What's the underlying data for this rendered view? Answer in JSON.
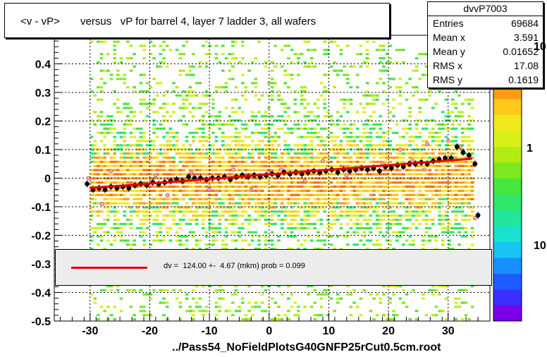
{
  "title": "<v - vP>       versus   vP for barrel 4, layer 7 ladder 3, all wafers",
  "stats": {
    "name": "dvvP7003",
    "rows": [
      {
        "key": "Entries",
        "value": "69684"
      },
      {
        "key": "Mean x",
        "value": "3.591"
      },
      {
        "key": "Mean y",
        "value": "0.01652"
      },
      {
        "key": "RMS x",
        "value": "17.08"
      },
      {
        "key": "RMS y",
        "value": "0.1619"
      }
    ]
  },
  "fit": {
    "text": "dv =  124.00 +-  4.67 (mkm) prob = 0.099",
    "color": "#e00000"
  },
  "footer": "../Pass54_NoFieldPlotsG40GNFP25rCut0.5cm.root",
  "colorbar": {
    "labels": [
      "10",
      "1",
      "10"
    ]
  },
  "chart_data": {
    "type": "scatter",
    "xlim": [
      -36,
      37
    ],
    "ylim": [
      -0.5,
      0.5
    ],
    "x_ticks": [
      -30,
      -20,
      -10,
      0,
      10,
      20,
      30
    ],
    "x_tick_labels": [
      "-30",
      "-20",
      "-10",
      "0",
      "10",
      "20",
      "30"
    ],
    "y_ticks": [
      -0.5,
      -0.4,
      -0.3,
      -0.2,
      -0.1,
      0,
      0.1,
      0.2,
      0.3,
      0.4
    ],
    "y_tick_labels": [
      "-0.5",
      "-0.4",
      "-0.3",
      "-0.2",
      "-0.1",
      "0",
      "0.1",
      "0.2",
      "0.3",
      "0.4"
    ],
    "grid": true,
    "histogram_x_range": [
      -30,
      34
    ],
    "fit_line": {
      "x": [
        -30,
        34
      ],
      "y": [
        -0.035,
        0.068
      ],
      "color": "#e00000"
    },
    "profile_points": [
      [
        -30.5,
        -0.02
      ],
      [
        -29.5,
        -0.04
      ],
      [
        -28.5,
        -0.035
      ],
      [
        -27.5,
        -0.04
      ],
      [
        -26.5,
        -0.03
      ],
      [
        -25.5,
        -0.035
      ],
      [
        -24.5,
        -0.03
      ],
      [
        -23.5,
        -0.035
      ],
      [
        -22.5,
        -0.025
      ],
      [
        -21.5,
        -0.02
      ],
      [
        -20.5,
        -0.025
      ],
      [
        -19.5,
        -0.015
      ],
      [
        -18.5,
        -0.02
      ],
      [
        -17.5,
        -0.015
      ],
      [
        -16.5,
        -0.01
      ],
      [
        -15.5,
        -0.005
      ],
      [
        -14.5,
        -0.01
      ],
      [
        -13.5,
        0.005
      ],
      [
        -12.5,
        0.0
      ],
      [
        -11.5,
        0.0
      ],
      [
        -10.5,
        -0.005
      ],
      [
        -9.5,
        0.0
      ],
      [
        -8.5,
        0.0
      ],
      [
        -7.5,
        0.005
      ],
      [
        -6.5,
        -0.005
      ],
      [
        -5.5,
        0.005
      ],
      [
        -4.5,
        0.01
      ],
      [
        -3.5,
        0.005
      ],
      [
        -2.5,
        0.01
      ],
      [
        -1.5,
        0.005
      ],
      [
        -0.5,
        0.01
      ],
      [
        0.5,
        0.015
      ],
      [
        1.5,
        0.01
      ],
      [
        2.5,
        0.02
      ],
      [
        3.5,
        0.015
      ],
      [
        4.5,
        0.02
      ],
      [
        5.5,
        0.015
      ],
      [
        6.5,
        0.02
      ],
      [
        7.5,
        0.025
      ],
      [
        8.5,
        0.02
      ],
      [
        9.5,
        0.025
      ],
      [
        10.5,
        0.03
      ],
      [
        11.5,
        0.02
      ],
      [
        12.5,
        0.03
      ],
      [
        13.5,
        0.025
      ],
      [
        14.5,
        0.03
      ],
      [
        15.5,
        0.035
      ],
      [
        16.5,
        0.03
      ],
      [
        17.5,
        0.035
      ],
      [
        18.5,
        0.025
      ],
      [
        19.5,
        0.04
      ],
      [
        20.5,
        0.035
      ],
      [
        21.5,
        0.045
      ],
      [
        22.5,
        0.04
      ],
      [
        23.5,
        0.05
      ],
      [
        24.5,
        0.05
      ],
      [
        25.5,
        0.055
      ],
      [
        26.5,
        0.05
      ],
      [
        27.5,
        0.06
      ],
      [
        28.5,
        0.065
      ],
      [
        29.5,
        0.07
      ],
      [
        30.5,
        0.07
      ],
      [
        31.5,
        0.11
      ],
      [
        32.5,
        0.09
      ],
      [
        33.5,
        0.08
      ],
      [
        34.5,
        0.05
      ],
      [
        35.0,
        -0.13
      ]
    ],
    "outlier_points": [
      [
        -30.3,
        0.0
      ],
      [
        -26.5,
        0.025
      ],
      [
        -28,
        -0.09
      ],
      [
        -25,
        -0.03
      ],
      [
        -21,
        -0.02
      ],
      [
        -19,
        0.01
      ],
      [
        -17,
        -0.06
      ],
      [
        -13,
        0.02
      ],
      [
        -10,
        -0.04
      ],
      [
        -6,
        0.03
      ],
      [
        -3,
        -0.04
      ],
      [
        0,
        0.02
      ],
      [
        2,
        0.03
      ],
      [
        6,
        -0.01
      ],
      [
        9,
        0.06
      ],
      [
        13,
        0.01
      ],
      [
        15,
        0.03
      ],
      [
        19,
        0.05
      ],
      [
        22,
        0.1
      ],
      [
        24,
        0.06
      ],
      [
        26,
        0.03
      ],
      [
        26.5,
        0.12
      ],
      [
        30,
        0.13
      ],
      [
        32,
        0.11
      ],
      [
        34.5,
        -0.14
      ]
    ],
    "colorbar_colors": [
      "#7a00e8",
      "#3a2fff",
      "#1f5cff",
      "#1a90ff",
      "#18c3f5",
      "#1ae0d0",
      "#22e59a",
      "#2fe56c",
      "#47e63f",
      "#7de81e",
      "#b2ec14",
      "#d8f016",
      "#f0e81c",
      "#ffc81a",
      "#ff9a14",
      "#ff6a10",
      "#ff3a0c",
      "#ee1010"
    ]
  }
}
